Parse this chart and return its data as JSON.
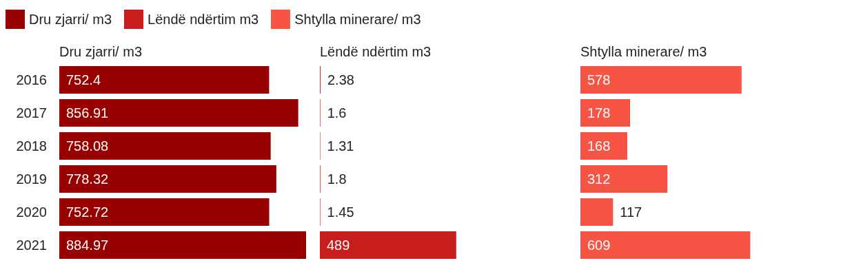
{
  "chart_data": [
    {
      "type": "bar",
      "orientation": "horizontal",
      "title": "Dru zjarri/ m3",
      "categories": [
        "2016",
        "2017",
        "2018",
        "2019",
        "2020",
        "2021"
      ],
      "series": [
        {
          "name": "Dru zjarri/ m3",
          "color": "#990000",
          "values": [
            752.4,
            856.91,
            758.08,
            778.32,
            752.72,
            884.97
          ]
        }
      ],
      "data_labels": true,
      "legend": "top left"
    },
    {
      "type": "bar",
      "orientation": "horizontal",
      "title": "Lëndë ndërtim m3",
      "categories": [
        "2016",
        "2017",
        "2018",
        "2019",
        "2020",
        "2021"
      ],
      "tick_labels": false,
      "series": [
        {
          "name": "Lëndë ndërtim m3",
          "color": "#c71e1d",
          "values": [
            2.38,
            1.6,
            1.31,
            1.8,
            1.45,
            489
          ]
        }
      ],
      "data_labels": true
    },
    {
      "type": "bar",
      "orientation": "horizontal",
      "title": "Shtylla minerare/ m3",
      "categories": [
        "2016",
        "2017",
        "2018",
        "2019",
        "2020",
        "2021"
      ],
      "tick_labels": false,
      "series": [
        {
          "name": "Shtylla minerare/ m3",
          "color": "#f65545",
          "values": [
            578,
            178,
            168,
            312,
            117,
            609
          ]
        }
      ],
      "data_labels": true
    }
  ]
}
